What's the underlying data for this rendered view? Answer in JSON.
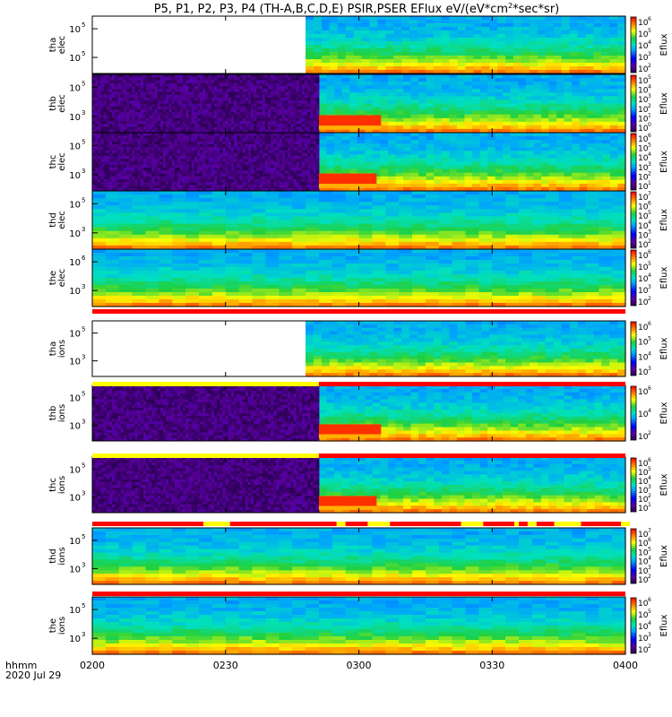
{
  "title": "P5, P1, P2, P3, P4 (TH-A,B,C,D,E) PSIR,PSER EFlux eV/(eV*cm",
  "title_sup": "2",
  "title_end": "*sec*sr)",
  "footer": {
    "axis_label": "hhmm",
    "date": "2020 Jul 29"
  },
  "colors": {
    "flag_red": "#ff0000",
    "flag_yellow": "#ffff00"
  },
  "chart_data": {
    "type": "heatmap",
    "x_ticks": [
      "0200",
      "0230",
      "0300",
      "0330",
      "0400"
    ],
    "panels": [
      {
        "id": "tha_elec",
        "probe": "tha",
        "species": "elec",
        "data_start": "0248",
        "fill": "none",
        "y_ticks": [
          "10",
          "10"
        ],
        "y_exp": [
          "5",
          "5"
        ],
        "cb_ticks": [
          "10",
          "10",
          "10",
          "10",
          "10"
        ],
        "cb_exp": [
          "6",
          "5",
          "4",
          "3",
          "2"
        ],
        "cb_label": "Eflux"
      },
      {
        "id": "thb_elec",
        "probe": "thb",
        "species": "elec",
        "data_start": "0251",
        "fill": "noise",
        "burst_end": "0305",
        "y_ticks": [
          "10",
          "10"
        ],
        "y_exp": [
          "5",
          "3"
        ],
        "cb_ticks": [
          "10",
          "10",
          "10",
          "10",
          "10",
          "10"
        ],
        "cb_exp": [
          "5",
          "4",
          "3",
          "2",
          "1",
          "0"
        ],
        "cb_label": "Eflux"
      },
      {
        "id": "thc_elec",
        "probe": "thc",
        "species": "elec",
        "data_start": "0251",
        "fill": "noise",
        "burst_end": "0304",
        "y_ticks": [
          "10",
          "10"
        ],
        "y_exp": [
          "5",
          "3"
        ],
        "cb_ticks": [
          "10",
          "10",
          "10",
          "10",
          "10",
          "10"
        ],
        "cb_exp": [
          "6",
          "5",
          "4",
          "3",
          "2",
          "1"
        ],
        "cb_label": "Eflux"
      },
      {
        "id": "thd_elec",
        "probe": "thd",
        "species": "elec",
        "data_start": "0200",
        "fill": "none",
        "y_ticks": [
          "10",
          "10"
        ],
        "y_exp": [
          "5",
          "3"
        ],
        "cb_ticks": [
          "10",
          "10",
          "10",
          "10",
          "10",
          "10"
        ],
        "cb_exp": [
          "7",
          "6",
          "5",
          "4",
          "3",
          "2"
        ],
        "cb_label": "Eflux"
      },
      {
        "id": "the_elec",
        "probe": "the",
        "species": "elec",
        "data_start": "0200",
        "fill": "none",
        "y_ticks": [
          "10",
          "10"
        ],
        "y_exp": [
          "6",
          "3"
        ],
        "cb_ticks": [
          "10",
          "10",
          "10",
          "10",
          "10"
        ],
        "cb_exp": [
          "6",
          "5",
          "4",
          "3",
          "2"
        ],
        "cb_label": "Eflux"
      },
      {
        "id": "tha_ions",
        "probe": "tha",
        "species": "ions",
        "data_start": "0248",
        "fill": "none",
        "y_ticks": [
          "10",
          "10"
        ],
        "y_exp": [
          "5",
          "3"
        ],
        "cb_ticks": [
          "10",
          "10",
          "10",
          "10"
        ],
        "cb_exp": [
          "6",
          "5",
          "4",
          "3"
        ],
        "cb_label": "Eflux"
      },
      {
        "id": "thb_ions",
        "probe": "thb",
        "species": "ions",
        "data_start": "0251",
        "fill": "noise",
        "burst_end": "0305",
        "y_ticks": [
          "10",
          "10"
        ],
        "y_exp": [
          "5",
          "3"
        ],
        "cb_ticks": [
          "10",
          "10",
          "10"
        ],
        "cb_exp": [
          "6",
          "4",
          "2"
        ],
        "cb_label": "Eflux"
      },
      {
        "id": "thc_ions",
        "probe": "thc",
        "species": "ions",
        "data_start": "0251",
        "fill": "noise",
        "burst_end": "0304",
        "y_ticks": [
          "10",
          "10"
        ],
        "y_exp": [
          "5",
          "3"
        ],
        "cb_ticks": [
          "10",
          "10",
          "10",
          "10",
          "10",
          "10"
        ],
        "cb_exp": [
          "6",
          "5",
          "4",
          "3",
          "2",
          "1"
        ],
        "cb_label": "Eflux"
      },
      {
        "id": "thd_ions",
        "probe": "thd",
        "species": "ions",
        "data_start": "0200",
        "fill": "none",
        "y_ticks": [
          "10",
          "10"
        ],
        "y_exp": [
          "5",
          "3"
        ],
        "cb_ticks": [
          "10",
          "10",
          "10",
          "10",
          "10",
          "10"
        ],
        "cb_exp": [
          "7",
          "6",
          "5",
          "4",
          "3",
          "2"
        ],
        "cb_label": "Eflux"
      },
      {
        "id": "the_ions",
        "probe": "the",
        "species": "ions",
        "data_start": "0200",
        "fill": "none",
        "y_ticks": [
          "10",
          "10"
        ],
        "y_exp": [
          "5",
          "3"
        ],
        "cb_ticks": [
          "10",
          "10",
          "10",
          "10",
          "10"
        ],
        "cb_exp": [
          "6",
          "5",
          "4",
          "3",
          "2"
        ],
        "cb_label": "Eflux"
      }
    ],
    "flag_bars": [
      {
        "after_panel": "the_elec",
        "segments": [
          [
            "0200",
            "0400",
            "red"
          ]
        ]
      },
      {
        "after_panel": "tha_ions",
        "segments": [
          [
            "0200",
            "0251",
            "yellow"
          ],
          [
            "0251",
            "0400",
            "red"
          ]
        ]
      },
      {
        "after_panel": "thb_ions",
        "segments": [
          [
            "0200",
            "0251",
            "yellow"
          ],
          [
            "0251",
            "0400",
            "red"
          ]
        ]
      },
      {
        "after_panel": "thc_ions",
        "segments": [
          [
            "0200",
            "0225",
            "red"
          ],
          [
            "0225",
            "0231",
            "yellow"
          ],
          [
            "0231",
            "0255",
            "red"
          ],
          [
            "0255",
            "0257",
            "yellow"
          ],
          [
            "0257",
            "0302",
            "red"
          ],
          [
            "0302",
            "0307",
            "yellow"
          ],
          [
            "0307",
            "0323",
            "red"
          ],
          [
            "0323",
            "0328",
            "yellow"
          ],
          [
            "0328",
            "0335",
            "red"
          ],
          [
            "0335",
            "0336",
            "yellow"
          ],
          [
            "0336",
            "0338",
            "red"
          ],
          [
            "0338",
            "0340",
            "yellow"
          ],
          [
            "0340",
            "0344",
            "red"
          ],
          [
            "0344",
            "0350",
            "yellow"
          ],
          [
            "0350",
            "0359",
            "red"
          ],
          [
            "0359",
            "0361",
            "yellow"
          ],
          [
            "0361",
            "0400",
            "red"
          ]
        ]
      },
      {
        "after_panel": "thd_ions",
        "segments": [
          [
            "0200",
            "0400",
            "red"
          ]
        ]
      }
    ]
  }
}
